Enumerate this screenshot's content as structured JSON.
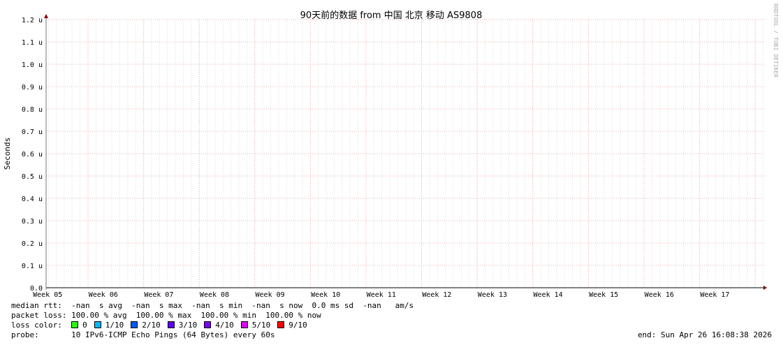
{
  "chart_data": {
    "type": "line",
    "title": "90天前的数据 from 中国 北京 移动 AS9808",
    "ylabel": "Seconds",
    "ylim": [
      0,
      1.2
    ],
    "y_unit_suffix": "u",
    "y_ticks": [
      "0.0",
      "0.1 u",
      "0.2 u",
      "0.3 u",
      "0.4 u",
      "0.5 u",
      "0.6 u",
      "0.7 u",
      "0.8 u",
      "0.9 u",
      "1.0 u",
      "1.1 u",
      "1.2 u"
    ],
    "x_ticks": [
      "Week 05",
      "Week 06",
      "Week 07",
      "Week 08",
      "Week 09",
      "Week 10",
      "Week 11",
      "Week 12",
      "Week 13",
      "Week 14",
      "Week 15",
      "Week 16",
      "Week 17"
    ],
    "grid": true,
    "series": [],
    "watermark": "RRDTOOL / TOBI OETIKER"
  },
  "legend": {
    "median_rtt": "median rtt:  -nan  s avg  -nan  s max  -nan  s min  -nan  s now  0.0 ms sd  -nan   am/s",
    "packet_loss": "packet loss: 100.00 % avg  100.00 % max  100.00 % min  100.00 % now",
    "loss_color_label": "loss color:  ",
    "loss_colors": [
      {
        "label": "0",
        "color": "#26ff00"
      },
      {
        "label": "1/10",
        "color": "#00b8ff"
      },
      {
        "label": "2/10",
        "color": "#0059ff"
      },
      {
        "label": "3/10",
        "color": "#5e00ff"
      },
      {
        "label": "4/10",
        "color": "#7e00ff"
      },
      {
        "label": "5/10",
        "color": "#dd00ff"
      },
      {
        "label": "9/10",
        "color": "#ff0000"
      }
    ],
    "probe": "probe:       10 IPv6-ICMP Echo Pings (64 Bytes) every 60s",
    "end": "end: Sun Apr 26 16:08:38 2026"
  }
}
